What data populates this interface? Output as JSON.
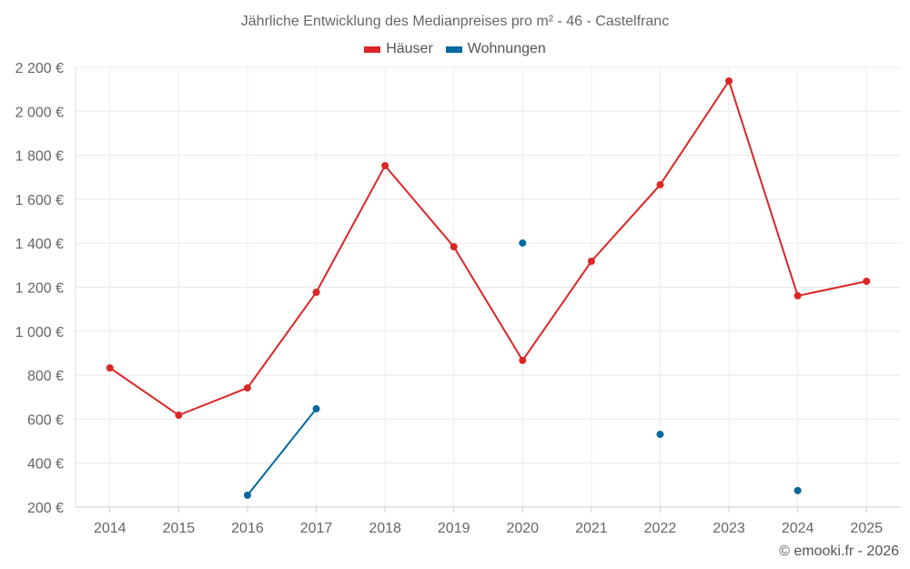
{
  "chart_data": {
    "type": "line",
    "title": "Jährliche Entwicklung des Medianpreises pro m² - 46 - Castelfranc",
    "xlabel": "",
    "ylabel": "",
    "categories": [
      "2014",
      "2015",
      "2016",
      "2017",
      "2018",
      "2019",
      "2020",
      "2021",
      "2022",
      "2023",
      "2024",
      "2025"
    ],
    "ylim": [
      200,
      2200
    ],
    "yticks": [
      200,
      400,
      600,
      800,
      1000,
      1200,
      1400,
      1600,
      1800,
      2000,
      2200
    ],
    "ytick_labels": [
      "200 €",
      "400 €",
      "600 €",
      "800 €",
      "1 000 €",
      "1 200 €",
      "1 400 €",
      "1 600 €",
      "1 800 €",
      "2 000 €",
      "2 200 €"
    ],
    "grid": true,
    "legend_position": "top-center",
    "series": [
      {
        "name": "Häuser",
        "color": "#dc2626",
        "values": [
          833,
          618,
          742,
          1177,
          1753,
          1384,
          867,
          1318,
          1666,
          2138,
          1161,
          1227
        ]
      },
      {
        "name": "Wohnungen",
        "color": "#0369a1",
        "values": [
          null,
          null,
          254,
          647,
          null,
          null,
          1401,
          null,
          531,
          null,
          275,
          null
        ]
      }
    ]
  },
  "credit": "© emooki.fr - 2026"
}
